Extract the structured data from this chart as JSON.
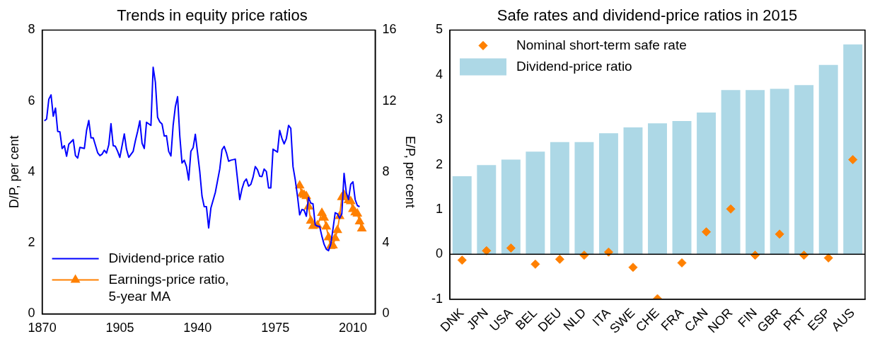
{
  "chart_data": [
    {
      "type": "line",
      "title": "Trends in equity price ratios",
      "ylabel": "D/P, per cent",
      "y2label": "E/P, per cent",
      "xlim": [
        1870,
        2020
      ],
      "xticks": [
        1870,
        1905,
        1940,
        1975,
        2010
      ],
      "ylim": [
        0,
        8
      ],
      "yticks": [
        0,
        2,
        4,
        6,
        8
      ],
      "y2lim": [
        0,
        16
      ],
      "y2ticks": [
        0,
        4,
        8,
        12,
        16
      ],
      "grid": false,
      "legend": "bottom left",
      "line_style": "solid",
      "series": [
        {
          "name": "Dividend-price ratio",
          "color": "#0000ff",
          "marker": "none",
          "x": [
            1871,
            1872,
            1873,
            1874,
            1875,
            1876,
            1877,
            1878,
            1879,
            1880,
            1881,
            1882,
            1884,
            1885,
            1886,
            1887,
            1889,
            1890,
            1891,
            1892,
            1893,
            1895,
            1896,
            1897,
            1898,
            1899,
            1900,
            1901,
            1902,
            1903,
            1904,
            1905,
            1907,
            1908,
            1909,
            1911,
            1912,
            1913,
            1914,
            1915,
            1916,
            1917,
            1919,
            1920,
            1921,
            1922,
            1923,
            1924,
            1925,
            1926,
            1927,
            1928,
            1929,
            1930,
            1931,
            1932,
            1933,
            1934,
            1935,
            1936,
            1937,
            1938,
            1939,
            1940,
            1941,
            1942,
            1943,
            1944,
            1945,
            1946,
            1948,
            1950,
            1951,
            1952,
            1953,
            1954,
            1955,
            1957,
            1959,
            1960,
            1961,
            1962,
            1963,
            1964,
            1965,
            1966,
            1967,
            1968,
            1969,
            1970,
            1971,
            1972,
            1973,
            1974,
            1976,
            1977,
            1978,
            1979,
            1980,
            1981,
            1982,
            1983,
            1984,
            1985,
            1986,
            1987,
            1988,
            1989,
            1990,
            1991,
            1992,
            1993,
            1994,
            1995,
            1996,
            1997,
            1998,
            1999,
            2000,
            2001,
            2002,
            2003,
            2004,
            2005,
            2006,
            2007,
            2008,
            2009,
            2010,
            2011,
            2012,
            2013
          ],
          "values": [
            5.44,
            5.49,
            6.05,
            6.17,
            5.57,
            5.8,
            5.14,
            5.13,
            4.66,
            4.74,
            4.44,
            4.78,
            4.91,
            4.46,
            4.39,
            4.69,
            4.66,
            5.17,
            5.45,
            4.96,
            4.96,
            4.54,
            4.46,
            4.5,
            4.61,
            4.53,
            4.76,
            5.36,
            4.74,
            4.72,
            4.58,
            4.41,
            5.07,
            4.64,
            4.41,
            4.58,
            4.88,
            5.14,
            5.44,
            4.81,
            4.66,
            5.4,
            5.31,
            6.95,
            6.53,
            5.54,
            5.41,
            5.35,
            5.01,
            5.02,
            4.58,
            4.45,
            5.31,
            5.84,
            6.12,
            5.01,
            4.25,
            4.33,
            4.15,
            3.77,
            4.58,
            4.68,
            5.06,
            4.54,
            4.01,
            3.32,
            3.02,
            3.02,
            2.42,
            2.98,
            3.42,
            4.08,
            4.62,
            4.72,
            4.54,
            4.3,
            4.33,
            4.36,
            3.22,
            3.52,
            3.72,
            3.8,
            3.6,
            3.65,
            3.85,
            4.15,
            4.06,
            3.88,
            3.87,
            4.08,
            4.01,
            3.55,
            3.55,
            4.64,
            4.56,
            5.17,
            4.95,
            4.79,
            4.94,
            5.31,
            5.23,
            4.15,
            3.78,
            3.32,
            2.79,
            2.94,
            2.92,
            2.75,
            3.28,
            3.12,
            3.1,
            2.51,
            2.47,
            2.46,
            2.19,
            1.96,
            1.82,
            1.78,
            1.96,
            2.39,
            2.85,
            2.82,
            2.69,
            2.82,
            3.96,
            3.42,
            3.22,
            3.65,
            3.72,
            3.22,
            3.05,
            3.02
          ]
        },
        {
          "name": "Earnings-price ratio, 5-year MA",
          "color": "#ff8000",
          "marker": "triangle",
          "axis": "y2",
          "x": [
            1986,
            1987,
            1988,
            1989,
            1990,
            1991,
            1992,
            1994,
            1996,
            1997,
            1998,
            1999,
            2000,
            2001,
            2002,
            2003,
            2004,
            2005,
            2006,
            2008,
            2009,
            2010,
            2011,
            2012,
            2013,
            2014
          ],
          "values": [
            7.23,
            6.77,
            6.7,
            6.63,
            6.04,
            5.24,
            4.94,
            4.98,
            5.68,
            5.41,
            4.91,
            4.31,
            3.82,
            3.85,
            4.27,
            4.71,
            5.5,
            6.57,
            6.7,
            6.4,
            6.34,
            5.9,
            5.71,
            5.64,
            5.2,
            4.8
          ]
        }
      ]
    },
    {
      "type": "bar",
      "title": "Safe rates and dividend-price ratios in 2015",
      "categories": [
        "DNK",
        "JPN",
        "USA",
        "BEL",
        "DEU",
        "NLD",
        "ITA",
        "SWE",
        "CHE",
        "FRA",
        "CAN",
        "NOR",
        "FIN",
        "GBR",
        "PRT",
        "ESP",
        "AUS"
      ],
      "ylim": [
        -1,
        5
      ],
      "yticks": [
        -1,
        0,
        1,
        2,
        3,
        4,
        5
      ],
      "grid": false,
      "legend": "top left",
      "ref_lines": [
        {
          "axis": "y",
          "value": 0,
          "color": "#000000"
        }
      ],
      "series": [
        {
          "name": "Nominal short-term safe rate",
          "type": "scatter",
          "marker": "diamond",
          "color": "#ff8000",
          "x": [
            "DNK",
            "JPN",
            "USA",
            "BEL",
            "DEU",
            "NLD",
            "ITA",
            "SWE",
            "CHE",
            "FRA",
            "CAN",
            "NOR",
            "FIN",
            "GBR",
            "PRT",
            "ESP",
            "AUS"
          ],
          "values": [
            -0.13,
            0.08,
            0.14,
            -0.22,
            -0.11,
            -0.02,
            0.05,
            -0.29,
            -0.99,
            -0.19,
            0.5,
            1.01,
            -0.02,
            0.45,
            -0.02,
            -0.08,
            2.11
          ]
        },
        {
          "name": "Dividend-price ratio",
          "type": "bar",
          "color": "#add8e6",
          "values": [
            1.74,
            1.99,
            2.11,
            2.29,
            2.5,
            2.5,
            2.7,
            2.83,
            2.92,
            2.97,
            3.16,
            3.66,
            3.66,
            3.69,
            3.77,
            4.22,
            4.68
          ]
        }
      ]
    }
  ]
}
